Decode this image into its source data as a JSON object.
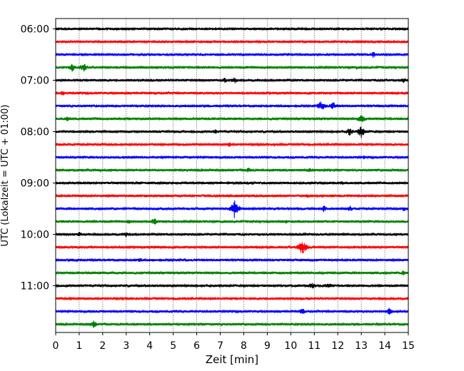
{
  "chart_data": {
    "type": "line",
    "title": "",
    "xlabel": "Zeit  [min]",
    "ylabel": "UTC (Lokalzeit = UTC + 01:00)",
    "xlim": [
      0,
      15
    ],
    "x_ticks": [
      "0",
      "1",
      "2",
      "3",
      "4",
      "5",
      "6",
      "7",
      "8",
      "9",
      "10",
      "11",
      "12",
      "13",
      "14",
      "15"
    ],
    "y_ticks": [
      "06:00",
      "07:00",
      "08:00",
      "09:00",
      "10:00",
      "11:00"
    ],
    "grid": "vertical dotted",
    "trace_interval_min": 15,
    "colors": [
      "#000000",
      "#ff0000",
      "#0000ff",
      "#008000"
    ],
    "series": [
      {
        "start": "06:00",
        "color": "#000000",
        "events": [
          {
            "t": 12.0,
            "amp": 3
          }
        ]
      },
      {
        "start": "06:15",
        "color": "#ff0000",
        "events": []
      },
      {
        "start": "06:30",
        "color": "#0000ff",
        "events": [
          {
            "t": 13.5,
            "amp": 5
          }
        ]
      },
      {
        "start": "06:45",
        "color": "#008000",
        "events": [
          {
            "t": 0.7,
            "amp": 6
          },
          {
            "t": 1.2,
            "amp": 7
          },
          {
            "t": 12.8,
            "amp": 3
          }
        ]
      },
      {
        "start": "07:00",
        "color": "#000000",
        "events": [
          {
            "t": 7.2,
            "amp": 4
          },
          {
            "t": 7.6,
            "amp": 5
          },
          {
            "t": 14.8,
            "amp": 4
          }
        ]
      },
      {
        "start": "07:15",
        "color": "#ff0000",
        "events": [
          {
            "t": 0.3,
            "amp": 4
          }
        ]
      },
      {
        "start": "07:30",
        "color": "#0000ff",
        "events": [
          {
            "t": 11.3,
            "amp": 8
          },
          {
            "t": 11.8,
            "amp": 6
          }
        ]
      },
      {
        "start": "07:45",
        "color": "#008000",
        "events": [
          {
            "t": 0.5,
            "amp": 4
          },
          {
            "t": 13.0,
            "amp": 7
          }
        ]
      },
      {
        "start": "08:00",
        "color": "#000000",
        "events": [
          {
            "t": 6.8,
            "amp": 4
          },
          {
            "t": 13.0,
            "amp": 10
          },
          {
            "t": 12.5,
            "amp": 6
          }
        ]
      },
      {
        "start": "08:15",
        "color": "#ff0000",
        "events": [
          {
            "t": 7.4,
            "amp": 4
          },
          {
            "t": 9.3,
            "amp": 3
          }
        ]
      },
      {
        "start": "08:30",
        "color": "#0000ff",
        "events": [
          {
            "t": 13.1,
            "amp": 3
          }
        ]
      },
      {
        "start": "08:45",
        "color": "#008000",
        "events": [
          {
            "t": 8.2,
            "amp": 4
          },
          {
            "t": 10.8,
            "amp": 4
          }
        ]
      },
      {
        "start": "09:00",
        "color": "#000000",
        "events": [
          {
            "t": 12.2,
            "amp": 3
          }
        ]
      },
      {
        "start": "09:15",
        "color": "#ff0000",
        "events": [
          {
            "t": 10.7,
            "amp": 3
          }
        ]
      },
      {
        "start": "09:30",
        "color": "#0000ff",
        "events": [
          {
            "t": 7.6,
            "amp": 14
          },
          {
            "t": 11.4,
            "amp": 5
          },
          {
            "t": 12.5,
            "amp": 5
          },
          {
            "t": 14.8,
            "amp": 4
          }
        ]
      },
      {
        "start": "09:45",
        "color": "#008000",
        "events": [
          {
            "t": 3.1,
            "amp": 4
          },
          {
            "t": 4.2,
            "amp": 6
          },
          {
            "t": 9.8,
            "amp": 3
          }
        ]
      },
      {
        "start": "10:00",
        "color": "#000000",
        "events": [
          {
            "t": 1.0,
            "amp": 4
          },
          {
            "t": 3.0,
            "amp": 4
          }
        ]
      },
      {
        "start": "10:15",
        "color": "#ff0000",
        "events": [
          {
            "t": 10.5,
            "amp": 12
          },
          {
            "t": 1.5,
            "amp": 3
          }
        ]
      },
      {
        "start": "10:30",
        "color": "#0000ff",
        "events": [
          {
            "t": 3.6,
            "amp": 4
          },
          {
            "t": 0.9,
            "amp": 3
          }
        ]
      },
      {
        "start": "10:45",
        "color": "#008000",
        "events": [
          {
            "t": 14.8,
            "amp": 4
          }
        ]
      },
      {
        "start": "11:00",
        "color": "#000000",
        "events": [
          {
            "t": 10.9,
            "amp": 5
          },
          {
            "t": 11.6,
            "amp": 5
          }
        ]
      },
      {
        "start": "11:15",
        "color": "#ff0000",
        "events": [
          {
            "t": 0.6,
            "amp": 3
          }
        ]
      },
      {
        "start": "11:30",
        "color": "#0000ff",
        "events": [
          {
            "t": 10.5,
            "amp": 5
          },
          {
            "t": 14.2,
            "amp": 6
          }
        ]
      },
      {
        "start": "11:45",
        "color": "#008000",
        "events": [
          {
            "t": 1.6,
            "amp": 6
          }
        ]
      }
    ]
  }
}
